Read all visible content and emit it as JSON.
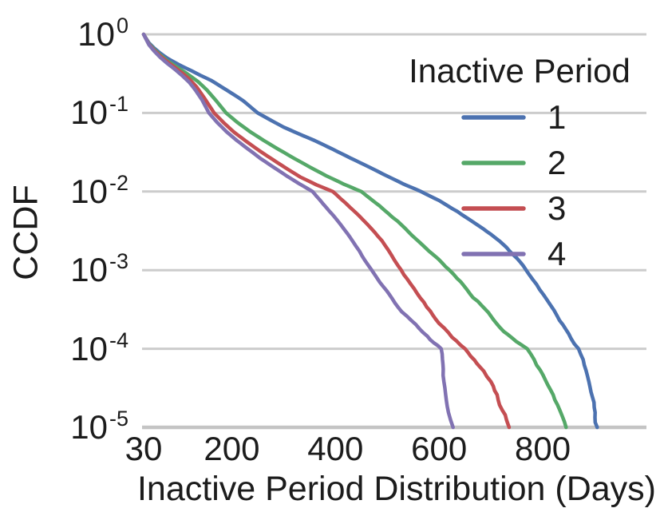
{
  "figure": {
    "background": "#ffffff",
    "text_color": "#1c1c1c"
  },
  "chart_data": {
    "type": "line",
    "title": "",
    "xlabel": "Inactive Period Distribution (Days)",
    "ylabel": "CCDF",
    "x_scale": "linear",
    "y_scale": "log",
    "xlim": [
      30,
      1000
    ],
    "ylim": [
      1e-05,
      1
    ],
    "xticks": [
      "30",
      "200",
      "400",
      "600",
      "800"
    ],
    "xtick_values": [
      30,
      200,
      400,
      600,
      800
    ],
    "ytick_exponents": [
      "0",
      "-1",
      "-2",
      "-3",
      "-4",
      "-5"
    ],
    "grid": true,
    "grid_color": "#cccccc",
    "axis_line_color": "#c4c4c4",
    "legend": {
      "title": "Inactive Period",
      "position": "upper right"
    },
    "series": [
      {
        "name": "1",
        "color": "#4C72B0",
        "points": [
          [
            30,
            1
          ],
          [
            40,
            0.78
          ],
          [
            50,
            0.67
          ],
          [
            62,
            0.575
          ],
          [
            75,
            0.5
          ],
          [
            90,
            0.44
          ],
          [
            105,
            0.39
          ],
          [
            122,
            0.345
          ],
          [
            140,
            0.3
          ],
          [
            160,
            0.26
          ],
          [
            180,
            0.215
          ],
          [
            200,
            0.178
          ],
          [
            222,
            0.143
          ],
          [
            250,
            0.1
          ],
          [
            275,
            0.081
          ],
          [
            300,
            0.066
          ],
          [
            330,
            0.054
          ],
          [
            360,
            0.0445
          ],
          [
            395,
            0.0345
          ],
          [
            430,
            0.0265
          ],
          [
            465,
            0.0205
          ],
          [
            500,
            0.0157
          ],
          [
            532,
            0.0124
          ],
          [
            565,
            0.01
          ],
          [
            600,
            0.0077
          ],
          [
            635,
            0.0056
          ],
          [
            668,
            0.004
          ],
          [
            700,
            0.00285
          ],
          [
            730,
            0.00195
          ],
          [
            750,
            0.00142
          ],
          [
            768,
            0.001
          ],
          [
            788,
            0.00066
          ],
          [
            808,
            0.00042
          ],
          [
            828,
            0.00026
          ],
          [
            850,
            0.000155
          ],
          [
            869,
            0.0001
          ],
          [
            880,
            6.2e-05
          ],
          [
            889,
            3.8e-05
          ],
          [
            896,
            2.4e-05
          ],
          [
            901,
            1.55e-05
          ],
          [
            905,
            1e-05
          ]
        ]
      },
      {
        "name": "2",
        "color": "#55A868",
        "points": [
          [
            30,
            1
          ],
          [
            40,
            0.76
          ],
          [
            50,
            0.645
          ],
          [
            62,
            0.545
          ],
          [
            75,
            0.465
          ],
          [
            90,
            0.4
          ],
          [
            105,
            0.345
          ],
          [
            120,
            0.295
          ],
          [
            135,
            0.25
          ],
          [
            152,
            0.196
          ],
          [
            170,
            0.143
          ],
          [
            189,
            0.1
          ],
          [
            210,
            0.0765
          ],
          [
            235,
            0.058
          ],
          [
            262,
            0.0445
          ],
          [
            290,
            0.0345
          ],
          [
            320,
            0.0265
          ],
          [
            350,
            0.0206
          ],
          [
            382,
            0.0159
          ],
          [
            415,
            0.0125
          ],
          [
            450,
            0.01
          ],
          [
            485,
            0.0066
          ],
          [
            520,
            0.0042
          ],
          [
            555,
            0.0025
          ],
          [
            590,
            0.00155
          ],
          [
            620,
            0.001
          ],
          [
            648,
            0.00063
          ],
          [
            675,
            0.0004
          ],
          [
            700,
            0.00026
          ],
          [
            725,
            0.000165
          ],
          [
            748,
            0.000125
          ],
          [
            770,
            0.0001
          ],
          [
            788,
            6.2e-05
          ],
          [
            805,
            4e-05
          ],
          [
            820,
            2.6e-05
          ],
          [
            833,
            1.65e-05
          ],
          [
            845,
            1e-05
          ]
        ]
      },
      {
        "name": "3",
        "color": "#C44E52",
        "points": [
          [
            30,
            1
          ],
          [
            40,
            0.75
          ],
          [
            50,
            0.63
          ],
          [
            62,
            0.53
          ],
          [
            75,
            0.45
          ],
          [
            90,
            0.38
          ],
          [
            105,
            0.32
          ],
          [
            118,
            0.27
          ],
          [
            132,
            0.215
          ],
          [
            148,
            0.152
          ],
          [
            166,
            0.1
          ],
          [
            185,
            0.0745
          ],
          [
            205,
            0.0565
          ],
          [
            228,
            0.0435
          ],
          [
            252,
            0.0335
          ],
          [
            278,
            0.0258
          ],
          [
            305,
            0.0198
          ],
          [
            333,
            0.0152
          ],
          [
            363,
            0.0122
          ],
          [
            395,
            0.01
          ],
          [
            428,
            0.0063
          ],
          [
            462,
            0.0038
          ],
          [
            495,
            0.0021
          ],
          [
            527,
            0.001
          ],
          [
            552,
            0.00058
          ],
          [
            576,
            0.00034
          ],
          [
            600,
            0.00021
          ],
          [
            625,
            0.00014
          ],
          [
            650,
            0.0001
          ],
          [
            668,
            7.2e-05
          ],
          [
            686,
            5.2e-05
          ],
          [
            700,
            3.8e-05
          ],
          [
            712,
            2.6e-05
          ],
          [
            722,
            1.65e-05
          ],
          [
            730,
            1.25e-05
          ],
          [
            735,
            1e-05
          ]
        ]
      },
      {
        "name": "4",
        "color": "#8172B2",
        "points": [
          [
            30,
            1
          ],
          [
            40,
            0.74
          ],
          [
            50,
            0.615
          ],
          [
            62,
            0.51
          ],
          [
            75,
            0.43
          ],
          [
            90,
            0.36
          ],
          [
            104,
            0.3
          ],
          [
            118,
            0.245
          ],
          [
            130,
            0.195
          ],
          [
            143,
            0.145
          ],
          [
            156,
            0.1
          ],
          [
            172,
            0.0755
          ],
          [
            190,
            0.0575
          ],
          [
            210,
            0.0445
          ],
          [
            232,
            0.0345
          ],
          [
            255,
            0.0265
          ],
          [
            280,
            0.0205
          ],
          [
            306,
            0.0158
          ],
          [
            330,
            0.0126
          ],
          [
            356,
            0.01
          ],
          [
            382,
            0.0063
          ],
          [
            410,
            0.0038
          ],
          [
            440,
            0.002
          ],
          [
            470,
            0.001
          ],
          [
            492,
            0.00062
          ],
          [
            515,
            0.00038
          ],
          [
            538,
            0.00026
          ],
          [
            562,
            0.00018
          ],
          [
            583,
            0.00013
          ],
          [
            604,
            0.0001
          ],
          [
            608,
            5.5e-05
          ],
          [
            611,
            3.2e-05
          ],
          [
            614,
            2.2e-05
          ],
          [
            618,
            1.55e-05
          ],
          [
            622,
            1.25e-05
          ],
          [
            627,
            1e-05
          ]
        ]
      }
    ]
  }
}
